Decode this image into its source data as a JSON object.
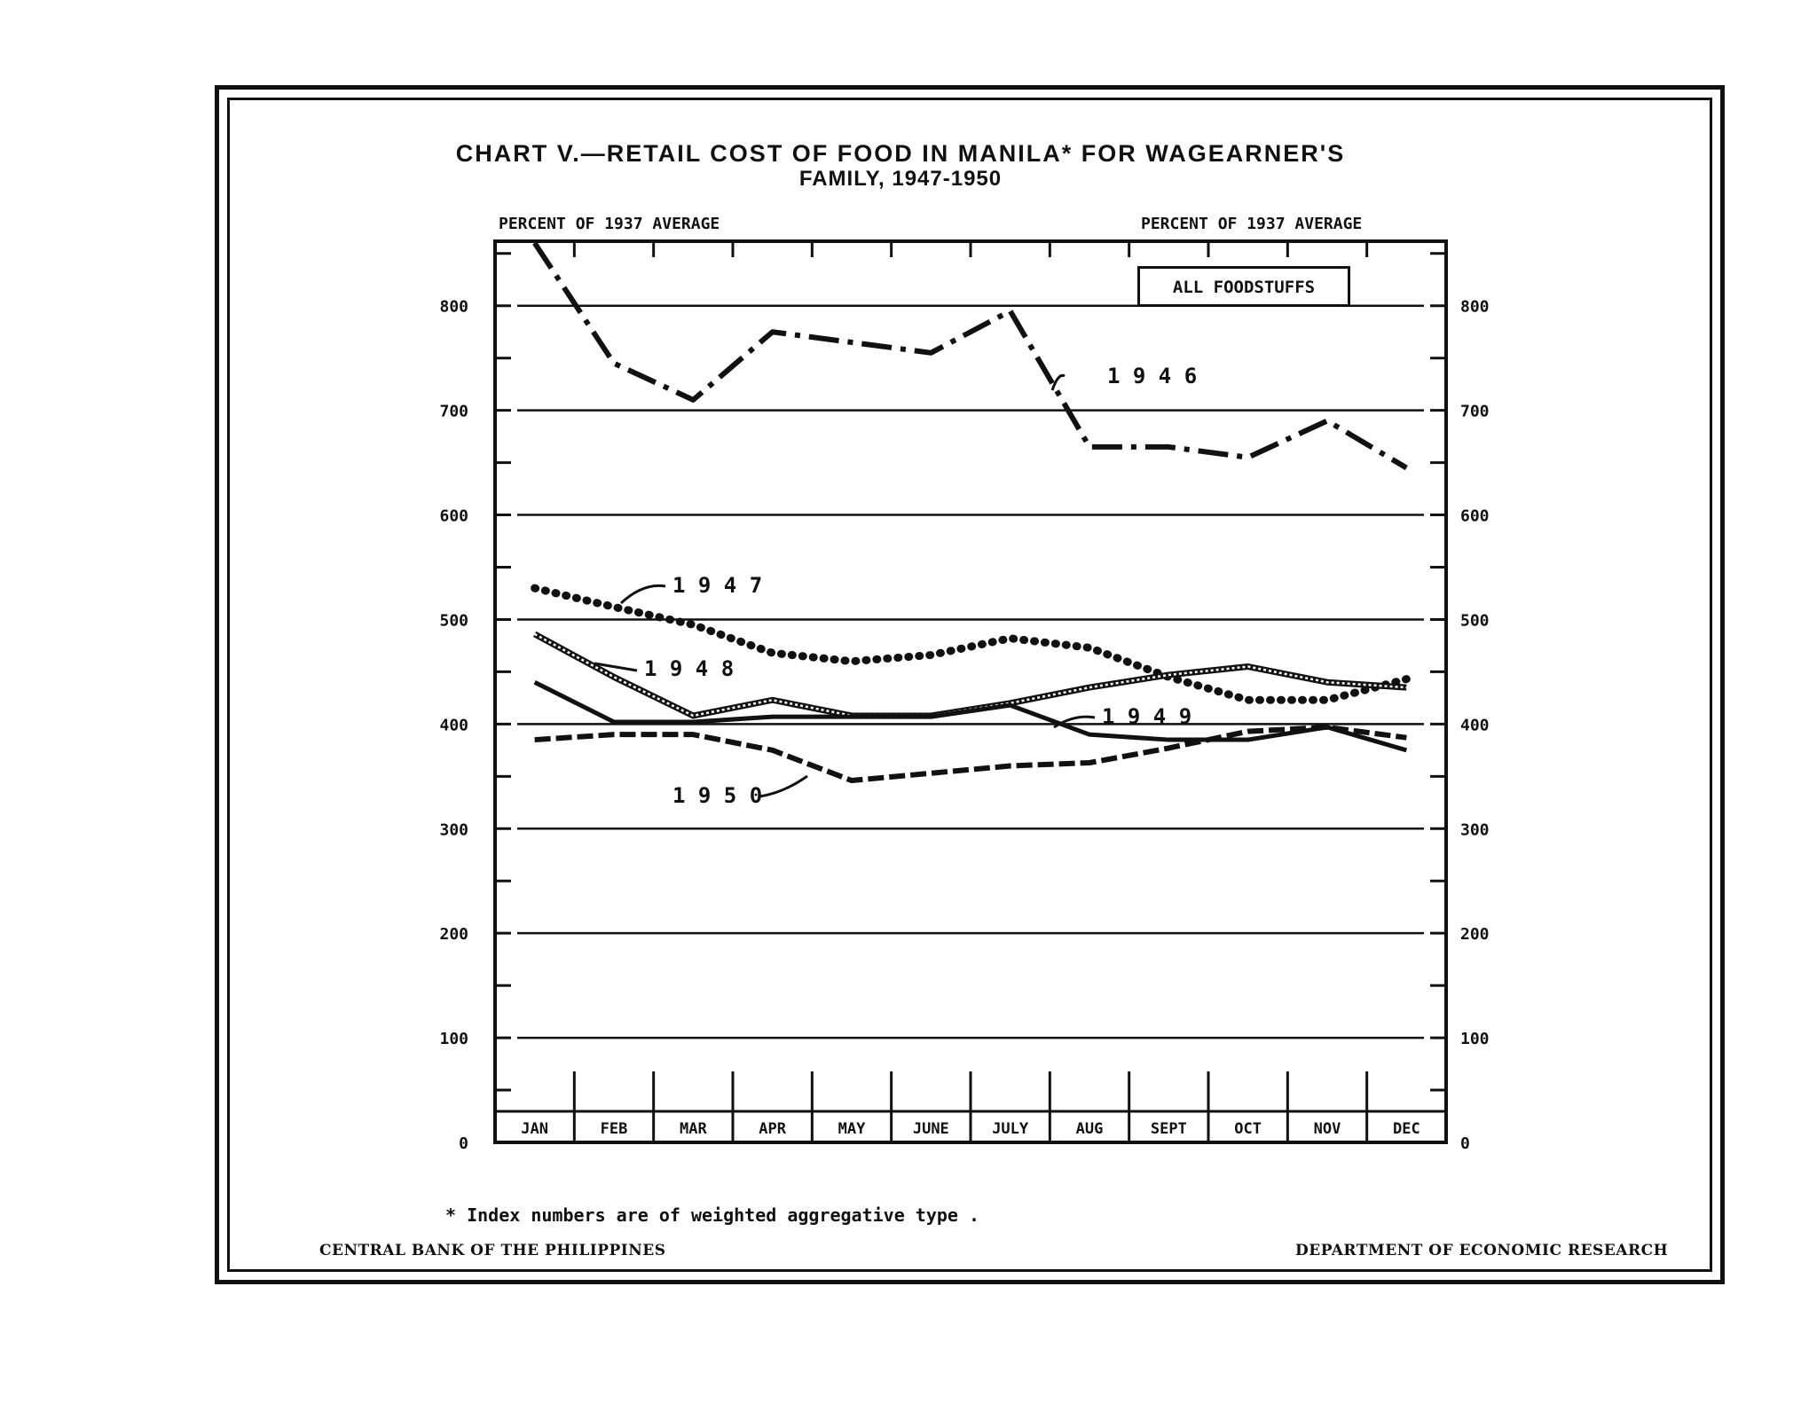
{
  "title": "CHART V.—RETAIL COST OF FOOD IN MANILA* FOR WAGEARNER'S",
  "subtitle": "FAMILY, 1947-1950",
  "left_axis_caption": "PERCENT OF 1937 AVERAGE",
  "right_axis_caption": "PERCENT OF 1937 AVERAGE",
  "legend_label": "ALL FOODSTUFFS",
  "footnote": "* Index numbers are of weighted aggregative type .",
  "credit_left": "CENTRAL BANK OF THE PHILIPPINES",
  "credit_right": "DEPARTMENT OF ECONOMIC RESEARCH",
  "chart_data": {
    "type": "line",
    "title": "CHART V.—RETAIL COST OF FOOD IN MANILA* FOR WAGEARNER'S FAMILY, 1947-1950",
    "ylabel": "PERCENT OF 1937 AVERAGE",
    "ylabel_right": "PERCENT OF 1937 AVERAGE",
    "ylim": [
      0,
      860
    ],
    "yticks": [
      "0",
      "100",
      "200",
      "300",
      "400",
      "500",
      "600",
      "700",
      "800"
    ],
    "ytick_values": [
      0,
      100,
      200,
      300,
      400,
      500,
      600,
      700,
      800
    ],
    "categories": [
      "JAN",
      "FEB",
      "MAR",
      "APR",
      "MAY",
      "JUNE",
      "JULY",
      "AUG",
      "SEPT",
      "OCT",
      "NOV",
      "DEC"
    ],
    "grid": "horizontal",
    "series": [
      {
        "name": "1946",
        "style": "dash-dot",
        "label": "1 9 4 6",
        "values": [
          860,
          745,
          710,
          775,
          765,
          755,
          795,
          665,
          665,
          655,
          690,
          645
        ]
      },
      {
        "name": "1947",
        "style": "dotted",
        "label": "1 9 4 7",
        "values": [
          530,
          512,
          495,
          468,
          460,
          466,
          482,
          473,
          445,
          423,
          423,
          443
        ]
      },
      {
        "name": "1948",
        "style": "double",
        "label": "1 9 4 8",
        "values": [
          486,
          445,
          408,
          423,
          408,
          408,
          420,
          435,
          447,
          455,
          440,
          435
        ]
      },
      {
        "name": "1949",
        "style": "solid",
        "label": "1 9 4 9",
        "values": [
          440,
          402,
          402,
          407,
          407,
          407,
          418,
          390,
          385,
          385,
          397,
          375
        ]
      },
      {
        "name": "1950",
        "style": "dashed",
        "label": "1 9 5 0",
        "values": [
          385,
          390,
          390,
          375,
          346,
          353,
          360,
          363,
          377,
          393,
          397,
          387
        ]
      }
    ]
  }
}
